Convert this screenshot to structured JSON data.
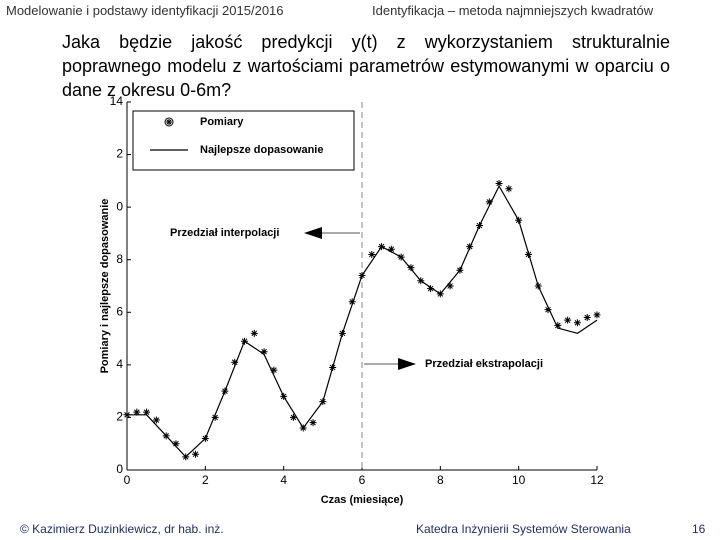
{
  "header": {
    "left": "Modelowanie i podstawy identyfikacji 2015/2016",
    "right": "Identyfikacja – metoda najmniejszych kwadratów"
  },
  "question": "Jaka będzie jakość predykcji y(t) z wykorzystaniem strukturalnie poprawnego modelu z wartościami parametrów estymowanymi w oparciu o dane z okresu 0-6m?",
  "footer": {
    "author": "© Kazimierz Duzinkiewicz, dr hab. inż.",
    "department": "Katedra Inżynierii Systemów Sterowania",
    "page": "16"
  },
  "chart_data": {
    "type": "line",
    "xlabel": "Czas (miesiące)",
    "ylabel": "Pomiary i najlepsze dopasowanie",
    "xlim": [
      0,
      12
    ],
    "xticks": [
      0,
      2,
      4,
      6,
      8,
      10,
      12
    ],
    "ylim": [
      0,
      14
    ],
    "yticks": [
      0,
      2,
      4,
      6,
      8,
      {
        "value": 10,
        "label": "0"
      },
      {
        "value": 12,
        "label": "2"
      },
      14
    ],
    "divider_x": 6,
    "legend": "upper left",
    "annotations": [
      {
        "text": "Przedział interpolacji",
        "arrow": "left"
      },
      {
        "text": "Przedział ekstrapolacji",
        "arrow": "right"
      }
    ],
    "series": [
      {
        "name": "Pomiary",
        "type": "scatter",
        "color": "#000000",
        "x": [
          0,
          0.25,
          0.5,
          0.75,
          1,
          1.25,
          1.5,
          1.75,
          2,
          2.25,
          2.5,
          2.75,
          3,
          3.25,
          3.5,
          3.75,
          4,
          4.25,
          4.5,
          4.75,
          5,
          5.25,
          5.5,
          5.75,
          6,
          6.25,
          6.5,
          6.75,
          7,
          7.25,
          7.5,
          7.75,
          8,
          8.25,
          8.5,
          8.75,
          9,
          9.25,
          9.5,
          9.75,
          10,
          10.25,
          10.5,
          10.75,
          11,
          11.25,
          11.5,
          11.75,
          12
        ],
        "values": [
          2.1,
          2.2,
          2.2,
          1.9,
          1.3,
          1.0,
          0.5,
          0.6,
          1.2,
          2.0,
          3.0,
          4.1,
          4.9,
          5.2,
          4.5,
          3.8,
          2.8,
          2.0,
          1.6,
          1.8,
          2.6,
          3.9,
          5.2,
          6.4,
          7.4,
          8.2,
          8.5,
          8.4,
          8.1,
          7.7,
          7.2,
          6.9,
          6.7,
          7.0,
          7.6,
          8.5,
          9.3,
          10.2,
          10.9,
          10.7,
          9.5,
          8.2,
          7.0,
          6.1,
          5.5,
          5.7,
          5.6,
          5.8,
          5.9
        ]
      },
      {
        "name": "Najlepsze dopasowanie",
        "type": "line",
        "color": "#000000",
        "x": [
          0,
          0.5,
          1,
          1.5,
          2,
          2.5,
          3,
          3.5,
          4,
          4.5,
          5,
          5.5,
          6,
          6.5,
          7,
          7.5,
          8,
          8.5,
          9,
          9.5,
          10,
          10.5,
          11,
          11.5,
          12
        ],
        "values": [
          2.1,
          2.1,
          1.3,
          0.5,
          1.2,
          3.0,
          4.9,
          4.4,
          2.8,
          1.6,
          2.6,
          5.2,
          7.4,
          8.5,
          8.1,
          7.2,
          6.7,
          7.6,
          9.3,
          10.8,
          9.5,
          7.0,
          5.4,
          5.2,
          5.7
        ]
      }
    ]
  }
}
